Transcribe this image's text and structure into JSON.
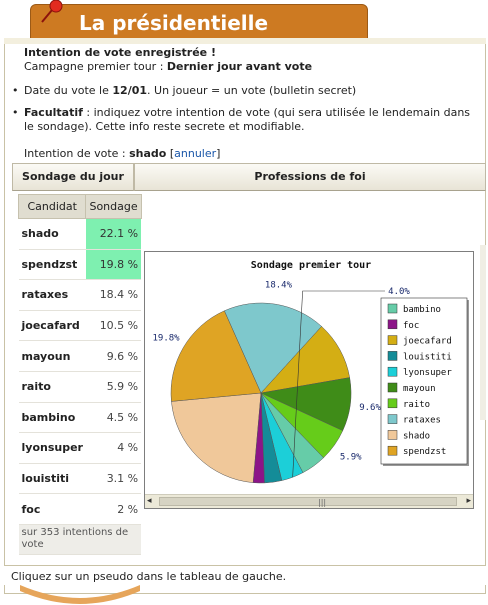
{
  "header": {
    "title": "La présidentielle"
  },
  "notice": {
    "line1": "Intention de vote enregistrée !",
    "line2_prefix": "Campagne premier tour : ",
    "line2_value": "Dernier jour avant vote"
  },
  "bullets": {
    "date_prefix": "Date du vote le ",
    "date_value": "12/01",
    "date_suffix": ". Un joueur = un vote (bulletin secret)",
    "optional_label": "Facultatif",
    "optional_text": " : indiquez votre intention de vote (qui sera utilisée le lendemain dans le sondage). Cette info reste secrete et modifiable."
  },
  "intent": {
    "label": "Intention de vote : ",
    "value": "shado",
    "cancel": "annuler"
  },
  "tabs": {
    "left": "Sondage du jour",
    "right": "Professions de foi"
  },
  "poll": {
    "col_candidate": "Candidat",
    "col_poll": "Sondage",
    "rows": [
      {
        "name": "shado",
        "pct": "22.1 %"
      },
      {
        "name": "spendzst",
        "pct": "19.8 %"
      },
      {
        "name": "rataxes",
        "pct": "18.4 %"
      },
      {
        "name": "joecafard",
        "pct": "10.5 %"
      },
      {
        "name": "mayoun",
        "pct": "9.6 %"
      },
      {
        "name": "raito",
        "pct": "5.9 %"
      },
      {
        "name": "bambino",
        "pct": "4.5 %"
      },
      {
        "name": "lyonsuper",
        "pct": "4 %"
      },
      {
        "name": "louistiti",
        "pct": "3.1 %"
      },
      {
        "name": "foc",
        "pct": "2 %"
      }
    ],
    "footer": "sur 353 intentions de vote"
  },
  "chart_data": {
    "type": "pie",
    "title": "Sondage premier tour",
    "legend_position": "right",
    "slices": [
      {
        "name": "shado",
        "value": 22.1,
        "color": "#f0c89a"
      },
      {
        "name": "spendzst",
        "value": 19.8,
        "color": "#dfa424"
      },
      {
        "name": "rataxes",
        "value": 18.4,
        "color": "#7ec8cc"
      },
      {
        "name": "joecafard",
        "value": 10.5,
        "color": "#d4ae14"
      },
      {
        "name": "mayoun",
        "value": 9.6,
        "color": "#3f8c18"
      },
      {
        "name": "raito",
        "value": 5.9,
        "color": "#66cc1a"
      },
      {
        "name": "bambino",
        "value": 4.5,
        "color": "#66cca8"
      },
      {
        "name": "lyonsuper",
        "value": 4.0,
        "color": "#1ccfd8"
      },
      {
        "name": "louistiti",
        "value": 3.1,
        "color": "#148c98"
      },
      {
        "name": "foc",
        "value": 2.0,
        "color": "#8c1488"
      }
    ],
    "legend_order": [
      "bambino",
      "foc",
      "joecafard",
      "louistiti",
      "lyonsuper",
      "mayoun",
      "raito",
      "rataxes",
      "shado",
      "spendzst"
    ],
    "data_labels": [
      {
        "name": "shado",
        "text": ""
      },
      {
        "name": "spendzst",
        "text": "19.8%"
      },
      {
        "name": "rataxes",
        "text": "18.4%"
      },
      {
        "name": "joecafard",
        "text": ""
      },
      {
        "name": "mayoun",
        "text": "9.6%"
      },
      {
        "name": "raito",
        "text": "5.9%"
      },
      {
        "name": "bambino",
        "text": ""
      },
      {
        "name": "lyonsuper",
        "text": "4.0%"
      },
      {
        "name": "louistiti",
        "text": ""
      },
      {
        "name": "foc",
        "text": ""
      }
    ]
  },
  "status": {
    "text": "Cliquez sur un pseudo dans le tableau de gauche."
  }
}
